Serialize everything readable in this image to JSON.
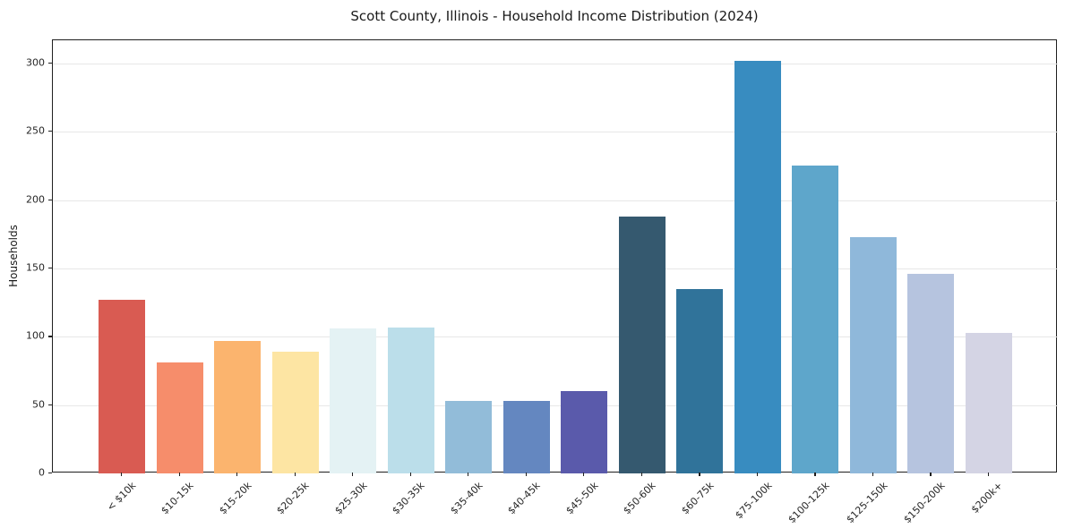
{
  "chart_data": {
    "type": "bar",
    "title": "Scott County, Illinois - Household Income Distribution (2024)",
    "xlabel": "",
    "ylabel": "Households",
    "categories": [
      "< $10k",
      "$10-15k",
      "$15-20k",
      "$20-25k",
      "$25-30k",
      "$30-35k",
      "$35-40k",
      "$40-45k",
      "$45-50k",
      "$50-60k",
      "$60-75k",
      "$75-100k",
      "$100-125k",
      "$125-150k",
      "$150-200k",
      "$200k+"
    ],
    "values": [
      127,
      81,
      97,
      89,
      106,
      107,
      53,
      53,
      60,
      188,
      135,
      302,
      225,
      173,
      146,
      103
    ],
    "bar_colors": [
      "#d95b52",
      "#f68d6b",
      "#fbb46e",
      "#fde5a3",
      "#e4f2f4",
      "#bbdeea",
      "#92bcd9",
      "#6487c0",
      "#5a5aab",
      "#35596f",
      "#30739a",
      "#388cc0",
      "#5ea6cb",
      "#8fb8da",
      "#b6c4df",
      "#d4d4e4"
    ],
    "ylim": [
      0,
      317
    ],
    "yticks": [
      0,
      50,
      100,
      150,
      200,
      250,
      300
    ],
    "grid": "horizontal",
    "legend": "none"
  },
  "colors": {
    "background": "#ffffff",
    "grid": "#e7e7e7",
    "spine": "#1f1f1f",
    "tick_text": "#262626"
  }
}
